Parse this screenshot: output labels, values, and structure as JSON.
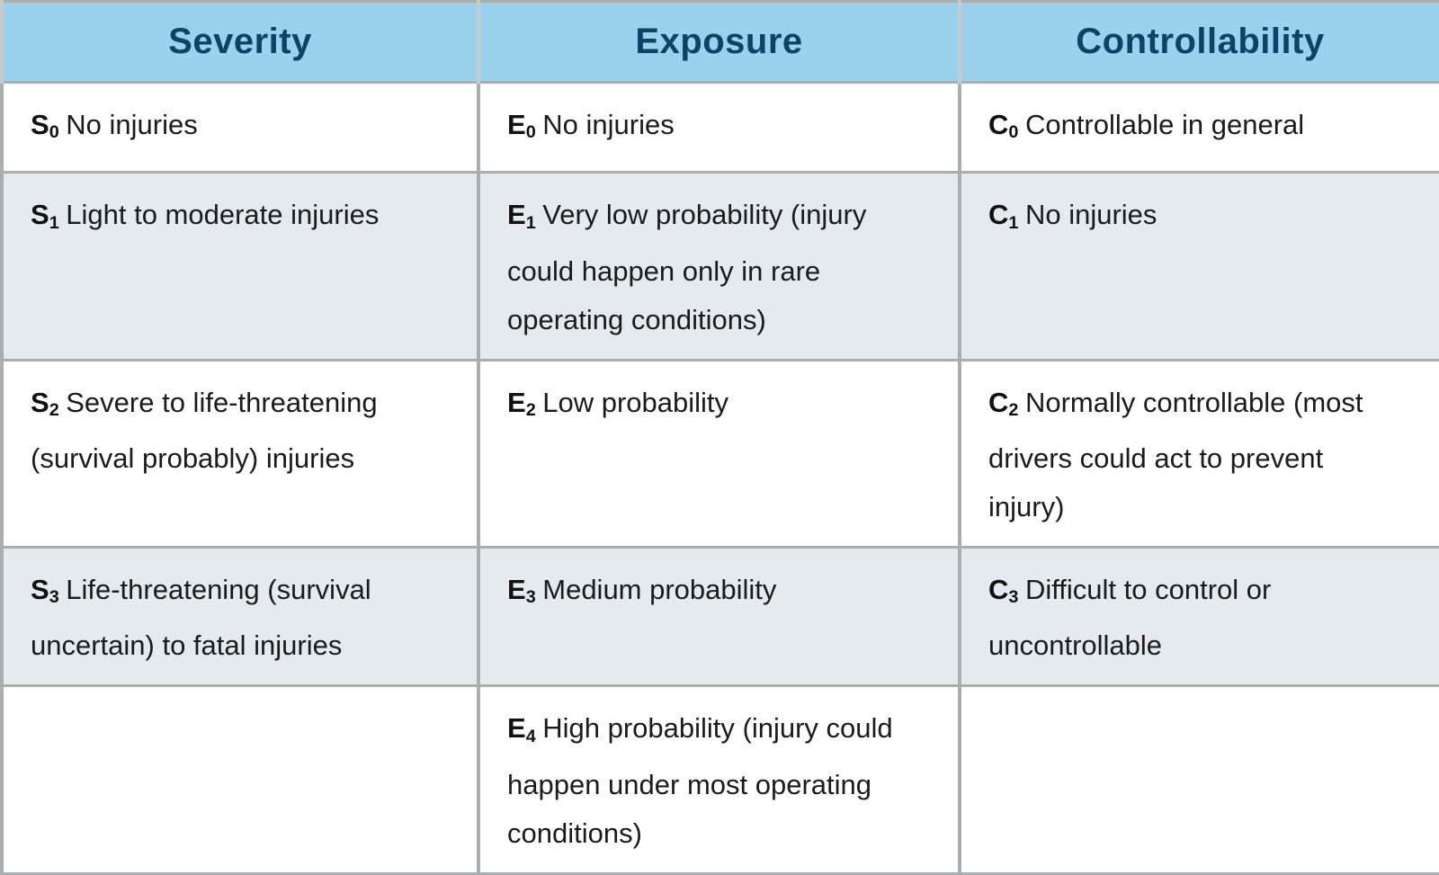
{
  "colors": {
    "header_bg": "#9ad2ed",
    "header_text": "#0e4266",
    "row_bg": "#ffffff",
    "row_alt_bg": "#e5eaee",
    "border": "#a9aeb1",
    "header_divider": "#c6cacc",
    "body_text": "#1b1b1b"
  },
  "table": {
    "headers": [
      {
        "label": "Severity"
      },
      {
        "label": "Exposure"
      },
      {
        "label": "Controllability"
      }
    ],
    "rows": [
      {
        "cells": [
          {
            "prefix": "S",
            "sub": "0",
            "text": "No injuries"
          },
          {
            "prefix": "E",
            "sub": "0",
            "text": "No injuries"
          },
          {
            "prefix": "C",
            "sub": "0",
            "text": "Controllable in general"
          }
        ]
      },
      {
        "cells": [
          {
            "prefix": "S",
            "sub": "1",
            "text": "Light to moderate injuries"
          },
          {
            "prefix": "E",
            "sub": "1",
            "text": "Very low probability (injury could happen only in rare operating conditions)"
          },
          {
            "prefix": "C",
            "sub": "1",
            "text": "No injuries"
          }
        ]
      },
      {
        "cells": [
          {
            "prefix": "S",
            "sub": "2",
            "text": "Severe to life-threatening (survival probably) injuries"
          },
          {
            "prefix": "E",
            "sub": "2",
            "text": "Low probability"
          },
          {
            "prefix": "C",
            "sub": "2",
            "text": "Normally controllable (most drivers could act to prevent injury)"
          }
        ]
      },
      {
        "cells": [
          {
            "prefix": "S",
            "sub": "3",
            "text": "Life-threatening (survival uncertain) to fatal injuries"
          },
          {
            "prefix": "E",
            "sub": "3",
            "text": "Medium probability"
          },
          {
            "prefix": "C",
            "sub": "3",
            "text": "Difficult to control or uncontrollable"
          }
        ]
      },
      {
        "cells": [
          {
            "prefix": "",
            "sub": "",
            "text": ""
          },
          {
            "prefix": "E",
            "sub": "4",
            "text": "High probability (injury could happen under most operating conditions)"
          },
          {
            "prefix": "",
            "sub": "",
            "text": ""
          }
        ]
      }
    ]
  }
}
